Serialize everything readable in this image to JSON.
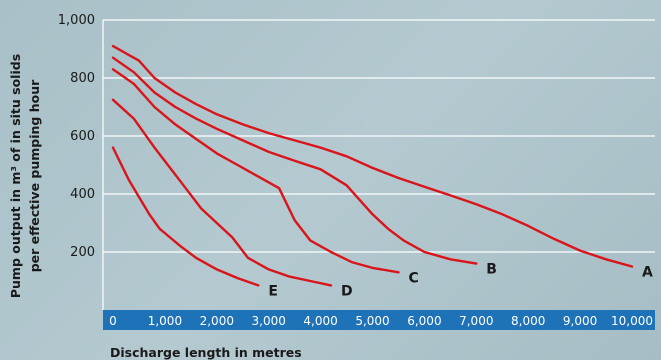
{
  "chart_data": {
    "type": "line",
    "ylabel_lines": [
      "Pump output in m³ of in situ solids",
      "per effective pumping hour"
    ],
    "xlabel": "Discharge length in metres",
    "xlim": [
      0,
      10000
    ],
    "ylim": [
      0,
      1000
    ],
    "x_ticks": [
      "0",
      "1,000",
      "2,000",
      "3,000",
      "4,000",
      "5,000",
      "6,000",
      "7,000",
      "8,000",
      "9,000",
      "10,000"
    ],
    "y_ticks": [
      {
        "value": 200,
        "label": "200"
      },
      {
        "value": 400,
        "label": "400"
      },
      {
        "value": 600,
        "label": "600"
      },
      {
        "value": 800,
        "label": "800"
      },
      {
        "value": 1000,
        "label": "1,000"
      }
    ],
    "grid": true,
    "colors": {
      "line": "#d9151b",
      "axis_band": "#1e72b8",
      "grid": "#ffffff"
    },
    "series": [
      {
        "name": "A",
        "x": [
          0,
          500,
          800,
          1200,
          1600,
          2000,
          2500,
          3000,
          3500,
          4000,
          4500,
          5000,
          5500,
          6000,
          6500,
          7000,
          7500,
          8000,
          8500,
          9000,
          9500,
          10000
        ],
        "y": [
          910,
          860,
          800,
          750,
          710,
          675,
          640,
          610,
          585,
          560,
          530,
          490,
          455,
          425,
          395,
          365,
          330,
          290,
          245,
          205,
          175,
          150
        ]
      },
      {
        "name": "B",
        "x": [
          0,
          400,
          800,
          1200,
          1600,
          2000,
          2500,
          3000,
          3500,
          4000,
          4500,
          5000,
          5300,
          5600,
          6000,
          6500,
          7000
        ],
        "y": [
          870,
          820,
          750,
          700,
          660,
          625,
          585,
          545,
          515,
          485,
          430,
          330,
          280,
          240,
          200,
          175,
          160
        ]
      },
      {
        "name": "C",
        "x": [
          0,
          400,
          800,
          1200,
          1600,
          2000,
          2400,
          2800,
          3200,
          3500,
          3800,
          4200,
          4600,
          5000,
          5500
        ],
        "y": [
          830,
          780,
          700,
          640,
          590,
          540,
          500,
          460,
          420,
          310,
          240,
          200,
          165,
          145,
          130
        ]
      },
      {
        "name": "D",
        "x": [
          0,
          400,
          800,
          1100,
          1400,
          1700,
          2000,
          2300,
          2600,
          3000,
          3400,
          3800,
          4200
        ],
        "y": [
          725,
          660,
          560,
          490,
          420,
          350,
          300,
          250,
          180,
          140,
          115,
          100,
          85
        ]
      },
      {
        "name": "E",
        "x": [
          0,
          300,
          500,
          700,
          900,
          1100,
          1300,
          1600,
          2000,
          2400,
          2800
        ],
        "y": [
          560,
          450,
          390,
          330,
          280,
          250,
          220,
          180,
          140,
          110,
          85
        ]
      }
    ]
  }
}
